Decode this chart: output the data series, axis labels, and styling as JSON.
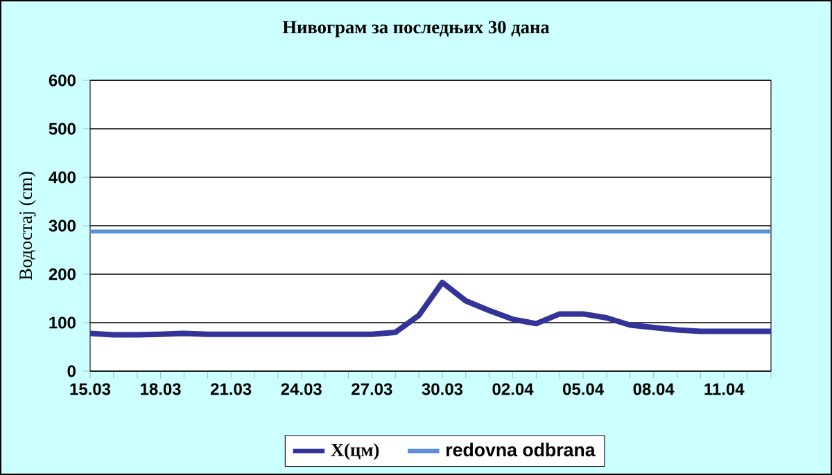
{
  "chart_data": {
    "type": "line",
    "title": "Нивограм за последњих 30 дана",
    "ylabel": "Водостај (cm)",
    "categories": [
      "15.03",
      null,
      null,
      "18.03",
      null,
      null,
      "21.03",
      null,
      null,
      "24.03",
      null,
      null,
      "27.03",
      null,
      null,
      "30.03",
      null,
      null,
      "02.04",
      null,
      null,
      "05.04",
      null,
      null,
      "08.04",
      null,
      null,
      "11.04",
      null,
      null
    ],
    "series": [
      {
        "name": "X(цм)",
        "color": "#333399",
        "values": [
          78,
          75,
          75,
          76,
          78,
          76,
          76,
          76,
          76,
          76,
          76,
          76,
          76,
          80,
          115,
          183,
          145,
          125,
          107,
          98,
          118,
          118,
          110,
          95,
          90,
          85,
          82,
          82,
          82,
          82
        ]
      }
    ],
    "ref_lines": [
      {
        "axis": "y",
        "value": 288,
        "label": "redovna odbrana",
        "color": "#5b8fd6"
      }
    ],
    "ylim": [
      0,
      600
    ],
    "yticks": [
      0,
      100,
      200,
      300,
      400,
      500,
      600
    ],
    "grid": "y",
    "legend": "bottom",
    "marker": "none",
    "line_style": "solid"
  }
}
